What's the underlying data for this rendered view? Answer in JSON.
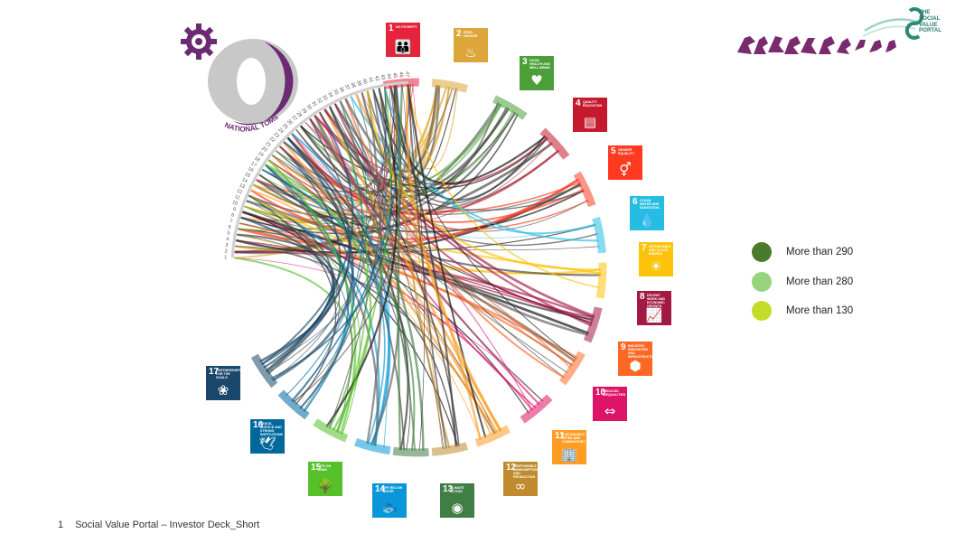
{
  "logos": {
    "svp_text": [
      "THE",
      "SOCIAL",
      "VALUE",
      "PORTAL"
    ],
    "toms_text": "NATIONAL TOMs",
    "svp_color": "#2b8a79",
    "toms_color": "#6b2a72"
  },
  "sdg_goals": [
    {
      "number": "1",
      "title": "NO POVERTY",
      "color": "#E5243B",
      "icon": "people-icon",
      "glyph": "👪"
    },
    {
      "number": "2",
      "title": "ZERO HUNGER",
      "color": "#DDA63A",
      "icon": "bowl-icon",
      "glyph": "♨"
    },
    {
      "number": "3",
      "title": "GOOD HEALTH AND WELL-BEING",
      "color": "#4C9F38",
      "icon": "heartbeat-icon",
      "glyph": "♥"
    },
    {
      "number": "4",
      "title": "QUALITY EDUCATION",
      "color": "#C5192D",
      "icon": "book-icon",
      "glyph": "▤"
    },
    {
      "number": "5",
      "title": "GENDER EQUALITY",
      "color": "#FF3A21",
      "icon": "gender-icon",
      "glyph": "⚥"
    },
    {
      "number": "6",
      "title": "CLEAN WATER AND SANITATION",
      "color": "#26BDE2",
      "icon": "water-drop-icon",
      "glyph": "💧"
    },
    {
      "number": "7",
      "title": "AFFORDABLE AND CLEAN ENERGY",
      "color": "#FCC30B",
      "icon": "sun-icon",
      "glyph": "☀"
    },
    {
      "number": "8",
      "title": "DECENT WORK AND ECONOMIC GROWTH",
      "color": "#A21942",
      "icon": "growth-chart-icon",
      "glyph": "📈"
    },
    {
      "number": "9",
      "title": "INDUSTRY, INNOVATION AND INFRASTRUCTURE",
      "color": "#FD6925",
      "icon": "cubes-icon",
      "glyph": "⬢"
    },
    {
      "number": "10",
      "title": "REDUCED INEQUALITIES",
      "color": "#DD1367",
      "icon": "equality-icon",
      "glyph": "⇔"
    },
    {
      "number": "11",
      "title": "SUSTAINABLE CITIES AND COMMUNITIES",
      "color": "#FD9D24",
      "icon": "city-icon",
      "glyph": "🏢"
    },
    {
      "number": "12",
      "title": "RESPONSIBLE CONSUMPTION AND PRODUCTION",
      "color": "#BF8B2E",
      "icon": "infinity-icon",
      "glyph": "∞"
    },
    {
      "number": "13",
      "title": "CLIMATE ACTION",
      "color": "#3F7E44",
      "icon": "globe-eye-icon",
      "glyph": "◉"
    },
    {
      "number": "14",
      "title": "LIFE BELOW WATER",
      "color": "#0A97D9",
      "icon": "fish-icon",
      "glyph": "🐟"
    },
    {
      "number": "15",
      "title": "LIFE ON LAND",
      "color": "#56C02B",
      "icon": "tree-bird-icon",
      "glyph": "🌳"
    },
    {
      "number": "16",
      "title": "PEACE, JUSTICE AND STRONG INSTITUTIONS",
      "color": "#00689D",
      "icon": "dove-icon",
      "glyph": "🕊"
    },
    {
      "number": "17",
      "title": "PARTNERSHIPS FOR THE GOALS",
      "color": "#19486A",
      "icon": "flower-rings-icon",
      "glyph": "❀"
    }
  ],
  "chord_labels": [
    "1",
    "2",
    "3",
    "4",
    "5",
    "6",
    "7",
    "8",
    "9",
    "10",
    "11",
    "12",
    "13",
    "14",
    "15",
    "16",
    "17",
    "18",
    "19",
    "20",
    "21",
    "22",
    "23",
    "24",
    "25",
    "26",
    "27",
    "28",
    "29",
    "30",
    "31",
    "32",
    "33",
    "34",
    "35",
    "36",
    "37",
    "38",
    "39",
    "40",
    "41",
    "42",
    "43",
    "44",
    "45",
    "46",
    "47"
  ],
  "legend": [
    {
      "label": "More than 290",
      "color": "#4a7a2c"
    },
    {
      "label": "More than 280",
      "color": "#98d47e"
    },
    {
      "label": "More than 130",
      "color": "#c2dc2a"
    }
  ],
  "footer": {
    "page_number": "1",
    "text": "Social Value Portal – Investor Deck_Short"
  }
}
